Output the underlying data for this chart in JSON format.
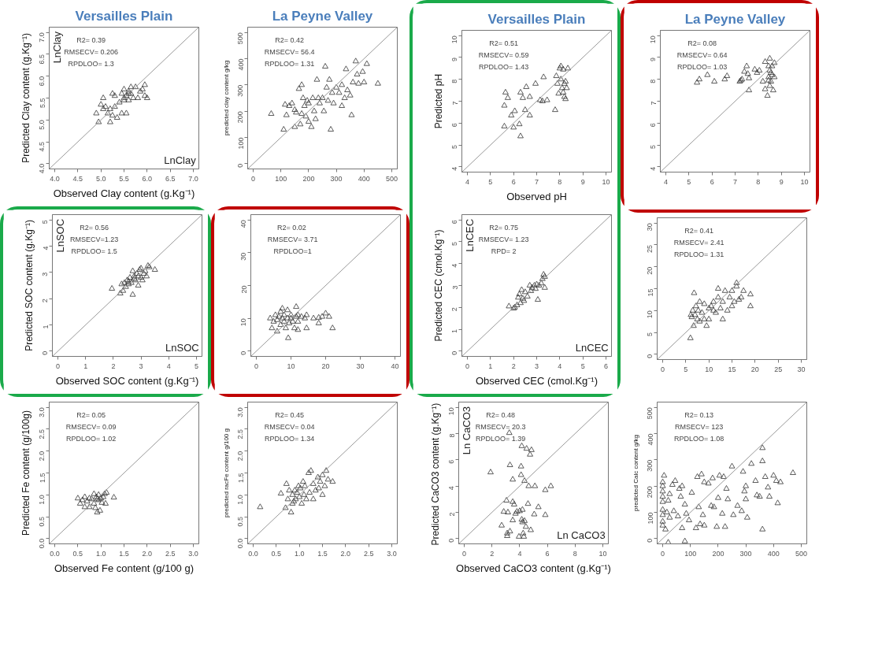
{
  "chart_data": [
    {
      "type": "scatter",
      "title": "Versailles Plain",
      "xlabel": "Observed Clay content (g.Kg⁻¹)",
      "ylabel": "Predicted Clay content (g.Kg⁻¹)",
      "xlim": [
        3.88,
        7.12
      ],
      "ylim": [
        3.88,
        7.12
      ],
      "xticks": [
        {
          "value": 4,
          "label": "4.0"
        },
        {
          "value": 4.5,
          "label": "4.5"
        },
        {
          "value": 5,
          "label": "5.0"
        },
        {
          "value": 5.5,
          "label": "5.5"
        },
        {
          "value": 6,
          "label": "6.0"
        },
        {
          "value": 6.5,
          "label": "6.5"
        },
        {
          "value": 7,
          "label": "7.0"
        }
      ],
      "yticks": [
        {
          "value": 4,
          "label": "4.0"
        },
        {
          "value": 4.5,
          "label": "4.5"
        },
        {
          "value": 5,
          "label": "5.0"
        },
        {
          "value": 5.5,
          "label": "5.5"
        },
        {
          "value": 6,
          "label": "6.0"
        },
        {
          "value": 6.5,
          "label": "6.5"
        },
        {
          "value": 7,
          "label": "7.0"
        }
      ],
      "grid": false,
      "marker": "triangle",
      "annotations": [
        "R2= 0.39",
        "RMSECV= 0.206",
        "RPDLOO= 1.3",
        "LnClay",
        "LnClay"
      ],
      "series": [
        {
          "color": "#333333",
          "x": [
            4.9,
            4.95,
            5.0,
            5.05,
            5.05,
            5.1,
            5.15,
            5.2,
            5.2,
            5.25,
            5.25,
            5.3,
            5.3,
            5.35,
            5.4,
            5.45,
            5.45,
            5.5,
            5.5,
            5.55,
            5.55,
            5.6,
            5.6,
            5.65,
            5.65,
            5.7,
            5.75,
            5.8,
            5.85,
            5.9,
            5.95,
            5.95,
            6.0,
            5.6,
            5.5
          ],
          "values": [
            5.15,
            4.95,
            5.35,
            5.5,
            5.25,
            5.3,
            5.15,
            4.95,
            5.25,
            5.6,
            5.1,
            5.55,
            5.3,
            5.05,
            5.4,
            5.15,
            5.6,
            5.5,
            5.7,
            5.55,
            5.15,
            5.6,
            5.45,
            5.75,
            5.6,
            5.5,
            5.75,
            5.5,
            5.65,
            5.7,
            5.8,
            5.55,
            5.5,
            5.65,
            5.45
          ]
        },
        {
          "type": "line",
          "marker": "none",
          "color": "#999999",
          "x": [
            3.88,
            7.12
          ],
          "values": [
            3.88,
            7.12
          ]
        }
      ]
    },
    {
      "type": "scatter",
      "title": "La Peyne Valley",
      "ylabel": "predicted clay content g/kg",
      "xlim": [
        -20,
        520
      ],
      "ylim": [
        -20,
        520
      ],
      "xticks": [
        0,
        100,
        200,
        300,
        400,
        500
      ],
      "yticks": [
        0,
        100,
        200,
        300,
        400,
        500
      ],
      "grid": false,
      "marker": "triangle",
      "annotations": [
        "R2= 0.42",
        "RMSECV= 56.4",
        "RPDLOO= 1.31"
      ],
      "series": [
        {
          "color": "#333333",
          "x": [
            65,
            110,
            115,
            120,
            130,
            140,
            150,
            150,
            155,
            165,
            170,
            175,
            175,
            180,
            185,
            190,
            195,
            200,
            200,
            210,
            215,
            220,
            225,
            230,
            235,
            240,
            250,
            255,
            260,
            265,
            270,
            275,
            280,
            285,
            290,
            300,
            310,
            320,
            320,
            330,
            335,
            340,
            350,
            355,
            360,
            370,
            375,
            380,
            395,
            400,
            410,
            450
          ],
          "values": [
            190,
            130,
            225,
            185,
            220,
            230,
            140,
            205,
            195,
            285,
            150,
            300,
            190,
            250,
            220,
            180,
            240,
            160,
            230,
            140,
            250,
            200,
            170,
            320,
            250,
            230,
            250,
            200,
            370,
            290,
            240,
            320,
            130,
            270,
            230,
            290,
            270,
            300,
            220,
            250,
            360,
            280,
            260,
            185,
            310,
            390,
            340,
            305,
            350,
            310,
            380,
            305
          ]
        },
        {
          "type": "line",
          "marker": "none",
          "color": "#999999",
          "x": [
            -20,
            520
          ],
          "values": [
            -20,
            520
          ]
        }
      ]
    },
    {
      "type": "scatter",
      "title": "Versailles Plain",
      "xlabel": "Observed pH",
      "ylabel": "Predicted pH",
      "xlim": [
        3.76,
        10.24
      ],
      "ylim": [
        3.76,
        10.24
      ],
      "xticks": [
        4,
        5,
        6,
        7,
        8,
        9,
        10
      ],
      "yticks": [
        4,
        5,
        6,
        7,
        8,
        9,
        10
      ],
      "grid": false,
      "marker": "triangle",
      "annotations": [
        "R2= 0.51",
        "RMSECV= 0.59",
        "RPDLOO= 1.43"
      ],
      "series": [
        {
          "color": "#333333",
          "x": [
            5.6,
            5.6,
            5.65,
            5.75,
            5.9,
            6.0,
            6.05,
            6.25,
            6.3,
            6.3,
            6.4,
            6.5,
            6.55,
            6.7,
            6.7,
            6.95,
            7.15,
            7.25,
            7.3,
            7.45,
            7.8,
            7.85,
            7.9,
            7.95,
            8.0,
            8.05,
            8.1,
            8.15,
            8.2,
            8.2,
            8.25,
            8.3,
            8.35,
            8.05,
            8.15,
            8.25
          ],
          "values": [
            5.85,
            6.8,
            7.4,
            7.15,
            6.35,
            5.8,
            6.55,
            5.95,
            5.4,
            7.4,
            7.15,
            6.6,
            7.65,
            7.2,
            6.35,
            7.8,
            7.05,
            7.0,
            8.1,
            7.05,
            6.6,
            8.15,
            7.8,
            7.35,
            8.5,
            8.0,
            7.6,
            8.45,
            7.8,
            7.2,
            7.9,
            7.6,
            8.5,
            8.6,
            7.4,
            7.1
          ]
        },
        {
          "type": "line",
          "marker": "none",
          "color": "#999999",
          "x": [
            3.76,
            10.24
          ],
          "values": [
            3.76,
            10.24
          ]
        }
      ]
    },
    {
      "type": "scatter",
      "title": "La Peyne Valley",
      "xlim": [
        3.76,
        10.24
      ],
      "ylim": [
        3.76,
        10.24
      ],
      "xticks": [
        4,
        5,
        6,
        7,
        8,
        9,
        10
      ],
      "yticks": [
        4,
        5,
        6,
        7,
        8,
        9,
        10
      ],
      "grid": false,
      "marker": "triangle",
      "annotations": [
        "R2= 0.08",
        "RMSECV= 0.64",
        "RPDLOO= 1.03"
      ],
      "series": [
        {
          "color": "#333333",
          "x": [
            5.35,
            5.45,
            5.8,
            6.1,
            6.55,
            6.65,
            7.2,
            7.25,
            7.3,
            7.4,
            7.5,
            7.55,
            7.6,
            7.6,
            7.85,
            7.95,
            8.05,
            8.2,
            8.3,
            8.3,
            8.4,
            8.45,
            8.45,
            8.5,
            8.5,
            8.5,
            8.55,
            8.6,
            8.6,
            8.65,
            8.7,
            8.7,
            8.55,
            8.45
          ],
          "values": [
            7.85,
            8.0,
            8.2,
            7.9,
            8.0,
            8.15,
            7.9,
            7.95,
            8.0,
            8.35,
            8.6,
            8.25,
            7.5,
            8.05,
            8.45,
            8.3,
            8.4,
            7.9,
            7.55,
            8.8,
            7.25,
            8.6,
            8.1,
            7.7,
            8.4,
            8.95,
            7.9,
            8.6,
            8.2,
            7.5,
            8.75,
            8.1,
            8.3,
            7.95
          ]
        },
        {
          "type": "line",
          "marker": "none",
          "color": "#999999",
          "x": [
            3.76,
            10.24
          ],
          "values": [
            3.76,
            10.24
          ]
        }
      ]
    },
    {
      "type": "scatter",
      "xlabel": "Observed SOC content (g.Kg⁻¹)",
      "ylabel": "Predicted SOC content (g.Kg⁻¹)",
      "xlim": [
        -0.2,
        5.2
      ],
      "ylim": [
        -0.2,
        5.2
      ],
      "xticks": [
        0,
        1,
        2,
        3,
        4,
        5
      ],
      "yticks": [
        0,
        1,
        2,
        3,
        4,
        5
      ],
      "grid": false,
      "marker": "triangle",
      "annotations": [
        "R2= 0.56",
        "RMSECV=1.23",
        "RPDLOO= 1.5",
        "LnSOC",
        "LnSOC"
      ],
      "series": [
        {
          "color": "#333333",
          "x": [
            1.95,
            2.25,
            2.3,
            2.35,
            2.4,
            2.45,
            2.5,
            2.55,
            2.6,
            2.65,
            2.7,
            2.7,
            2.75,
            2.8,
            2.85,
            2.9,
            2.9,
            2.95,
            3.0,
            3.0,
            3.05,
            3.1,
            3.15,
            3.2,
            3.25,
            3.3,
            3.5,
            2.55,
            2.75
          ],
          "values": [
            2.38,
            2.2,
            2.55,
            2.3,
            2.6,
            2.45,
            2.7,
            2.55,
            2.8,
            2.6,
            3.05,
            2.15,
            2.85,
            2.7,
            2.95,
            2.5,
            2.85,
            3.1,
            2.8,
            3.15,
            2.7,
            2.95,
            3.05,
            2.85,
            3.25,
            3.2,
            3.1,
            2.65,
            2.75
          ]
        },
        {
          "type": "line",
          "marker": "none",
          "color": "#999999",
          "x": [
            -0.2,
            5.2
          ],
          "values": [
            -0.2,
            5.2
          ]
        }
      ]
    },
    {
      "type": "scatter",
      "xlim": [
        -1.6,
        41.6
      ],
      "ylim": [
        -1.6,
        41.6
      ],
      "xticks": [
        0,
        10,
        20,
        30,
        40
      ],
      "yticks": [
        0,
        10,
        20,
        30,
        40
      ],
      "grid": false,
      "marker": "triangle",
      "annotations": [
        "R2=  0.02",
        "RMSECV= 3.71",
        "RPDLOO=1"
      ],
      "series": [
        {
          "color": "#333333",
          "x": [
            4,
            4.5,
            5,
            5.5,
            6,
            6,
            6.5,
            7,
            7,
            7.5,
            7.5,
            8,
            8,
            8.5,
            9,
            9,
            9.2,
            9.5,
            10,
            10,
            10.5,
            11,
            11.5,
            11.5,
            12,
            12,
            12,
            13,
            14,
            14.5,
            14.5,
            16.5,
            18,
            18,
            19,
            20,
            21,
            22
          ],
          "values": [
            10,
            7,
            9,
            11,
            6,
            9.5,
            10.5,
            8,
            12,
            13,
            10,
            9,
            11,
            7,
            12.5,
            10,
            4,
            8.5,
            11,
            10,
            9,
            7,
            10.5,
            13.5,
            9,
            11,
            6.5,
            10.5,
            10,
            11,
            7,
            10,
            8.5,
            10.2,
            10.5,
            11.5,
            10.5,
            7
          ]
        },
        {
          "type": "line",
          "marker": "none",
          "color": "#999999",
          "x": [
            -1.6,
            41.6
          ],
          "values": [
            -1.6,
            41.6
          ]
        }
      ]
    },
    {
      "type": "scatter",
      "xlabel": "Observed CEC (cmol.Kg⁻¹)",
      "ylabel": "Predicted CEC (cmol.Kg⁻¹)",
      "xlim": [
        -0.24,
        6.24
      ],
      "ylim": [
        -0.24,
        6.24
      ],
      "xticks": [
        0,
        1,
        2,
        3,
        4,
        5,
        6
      ],
      "yticks": [
        0,
        1,
        2,
        3,
        4,
        5,
        6
      ],
      "grid": false,
      "marker": "triangle",
      "annotations": [
        "R2= 0.75",
        "RMSECV= 1.23",
        "RPD= 2",
        "LnCEC",
        "LnCEC"
      ],
      "series": [
        {
          "color": "#333333",
          "x": [
            1.8,
            2.0,
            2.05,
            2.15,
            2.2,
            2.25,
            2.3,
            2.35,
            2.4,
            2.45,
            2.5,
            2.6,
            2.7,
            2.75,
            2.8,
            2.9,
            2.95,
            3.0,
            3.05,
            3.1,
            3.2,
            3.25,
            3.3,
            3.35,
            3.35
          ],
          "values": [
            2.05,
            1.95,
            2.0,
            2.1,
            2.45,
            2.6,
            2.2,
            2.8,
            2.4,
            2.3,
            2.7,
            2.5,
            3.0,
            2.75,
            2.9,
            3.0,
            2.85,
            3.05,
            2.35,
            3.0,
            3.1,
            3.3,
            3.5,
            2.9,
            3.4
          ]
        },
        {
          "type": "line",
          "marker": "none",
          "color": "#999999",
          "x": [
            -0.24,
            6.24
          ],
          "values": [
            -0.24,
            6.24
          ]
        }
      ]
    },
    {
      "type": "scatter",
      "xlim": [
        -1.2,
        31.2
      ],
      "ylim": [
        -1.2,
        31.2
      ],
      "xticks": [
        0,
        5,
        10,
        15,
        20,
        25,
        30
      ],
      "yticks": [
        0,
        5,
        10,
        15,
        20,
        25,
        30
      ],
      "grid": false,
      "marker": "triangle",
      "annotations": [
        "R2= 0.41",
        "RMSECV= 2.41",
        "RPDLOO= 1.31"
      ],
      "series": [
        {
          "color": "#333333",
          "x": [
            6,
            6.1,
            6.3,
            6.5,
            6.7,
            6.8,
            7,
            7.2,
            7.5,
            7.7,
            8,
            8,
            8.5,
            9,
            9,
            9.5,
            10,
            10,
            10.5,
            11,
            11,
            11.5,
            12,
            12,
            12.5,
            13,
            13,
            13.5,
            14,
            14.5,
            15,
            15,
            15.5,
            16,
            16,
            16.5,
            17,
            17.5,
            19,
            19
          ],
          "values": [
            3.7,
            9,
            8.5,
            10,
            6.5,
            14,
            9,
            11,
            8,
            10,
            12,
            7.5,
            9.5,
            11.5,
            8,
            6.5,
            10.5,
            8,
            11,
            12,
            10,
            9.5,
            15,
            13,
            10.5,
            8,
            12,
            14.5,
            10,
            13,
            14.5,
            11,
            12,
            16.3,
            15.5,
            12.5,
            13,
            14.5,
            13.7,
            11
          ]
        },
        {
          "type": "line",
          "marker": "none",
          "color": "#999999",
          "x": [
            -1.2,
            31.2
          ],
          "values": [
            -1.2,
            31.2
          ]
        }
      ]
    },
    {
      "type": "scatter",
      "xlabel": "Observed Fe content (g/100 g)",
      "ylabel": "Predicted Fe content (g/100g)",
      "xlim": [
        -0.12,
        3.12
      ],
      "ylim": [
        -0.12,
        3.12
      ],
      "xticks": [
        {
          "value": 0,
          "label": "0.0"
        },
        {
          "value": 0.5,
          "label": "0.5"
        },
        {
          "value": 1,
          "label": "1.0"
        },
        {
          "value": 1.5,
          "label": "1.5"
        },
        {
          "value": 2,
          "label": "2.0"
        },
        {
          "value": 2.5,
          "label": "2.5"
        },
        {
          "value": 3,
          "label": "3.0"
        }
      ],
      "yticks": [
        {
          "value": 0,
          "label": "0.0"
        },
        {
          "value": 0.5,
          "label": "0.5"
        },
        {
          "value": 1,
          "label": "1.0"
        },
        {
          "value": 1.5,
          "label": "1.5"
        },
        {
          "value": 2,
          "label": "2.0"
        },
        {
          "value": 2.5,
          "label": "2.5"
        },
        {
          "value": 3,
          "label": "3.0"
        }
      ],
      "grid": false,
      "marker": "triangle",
      "annotations": [
        "R2= 0.05",
        "RMSECV= 0.09",
        "RPDLOO= 1.02"
      ],
      "series": [
        {
          "color": "#333333",
          "x": [
            0.5,
            0.55,
            0.6,
            0.65,
            0.65,
            0.7,
            0.75,
            0.75,
            0.8,
            0.85,
            0.85,
            0.88,
            0.9,
            0.92,
            0.95,
            0.95,
            0.98,
            1.0,
            1.02,
            1.05,
            1.08,
            1.1,
            1.12,
            1.28,
            0.92
          ],
          "values": [
            0.92,
            0.8,
            0.88,
            0.72,
            0.95,
            0.85,
            0.92,
            0.72,
            0.9,
            0.8,
            1.02,
            0.7,
            0.95,
            0.6,
            0.88,
            1.0,
            0.64,
            0.92,
            0.82,
            0.95,
            1.02,
            0.8,
            1.05,
            0.94,
            0.9
          ]
        },
        {
          "type": "line",
          "marker": "none",
          "color": "#999999",
          "x": [
            -0.12,
            3.12
          ],
          "values": [
            -0.12,
            3.12
          ]
        }
      ]
    },
    {
      "type": "scatter",
      "ylabel": "predicted racFe content g/100 g",
      "xlim": [
        -0.12,
        3.12
      ],
      "ylim": [
        -0.12,
        3.12
      ],
      "xticks": [
        {
          "value": 0,
          "label": "0.0"
        },
        {
          "value": 0.5,
          "label": "0.5"
        },
        {
          "value": 1,
          "label": "1.0"
        },
        {
          "value": 1.5,
          "label": "1.5"
        },
        {
          "value": 2,
          "label": "2.0"
        },
        {
          "value": 2.5,
          "label": "2.5"
        },
        {
          "value": 3,
          "label": "3.0"
        }
      ],
      "yticks": [
        {
          "value": 0,
          "label": "0.0"
        },
        {
          "value": 0.5,
          "label": "0.5"
        },
        {
          "value": 1,
          "label": "1.0"
        },
        {
          "value": 1.5,
          "label": "1.5"
        },
        {
          "value": 2,
          "label": "2.0"
        },
        {
          "value": 2.5,
          "label": "2.5"
        },
        {
          "value": 3,
          "label": "3.0"
        }
      ],
      "grid": false,
      "marker": "triangle",
      "annotations": [
        "R2= 0.45",
        "RMSECV= 0.04",
        "RPDLOO= 1.34"
      ],
      "series": [
        {
          "color": "#333333",
          "x": [
            0.15,
            0.6,
            0.7,
            0.72,
            0.75,
            0.78,
            0.82,
            0.85,
            0.85,
            0.88,
            0.9,
            0.92,
            0.95,
            0.98,
            1.0,
            1.02,
            1.05,
            1.08,
            1.1,
            1.12,
            1.15,
            1.2,
            1.22,
            1.25,
            1.3,
            1.3,
            1.35,
            1.4,
            1.42,
            1.45,
            1.5,
            1.5,
            1.55,
            1.58,
            1.62,
            1.72
          ],
          "values": [
            0.72,
            1.03,
            0.7,
            1.25,
            0.9,
            1.1,
            0.6,
            0.8,
            1.0,
            0.85,
            1.1,
            0.9,
            1.05,
            1.2,
            0.95,
            1.15,
            0.8,
            1.3,
            1.0,
            1.2,
            0.9,
            1.5,
            1.05,
            1.55,
            1.25,
            0.9,
            1.1,
            1.4,
            1.15,
            1.3,
            1.45,
            1.0,
            1.2,
            1.55,
            1.35,
            1.3
          ]
        },
        {
          "type": "line",
          "marker": "none",
          "color": "#999999",
          "x": [
            -0.12,
            3.12
          ],
          "values": [
            -0.12,
            3.12
          ]
        }
      ]
    },
    {
      "type": "scatter",
      "xlabel": "Observed CaCO3 content (g.Kg⁻¹)",
      "ylabel": "Predicted  CaCO3 content (g.Kg⁻¹)",
      "xlim": [
        -0.4,
        10.4
      ],
      "ylim": [
        -0.4,
        10.4
      ],
      "xticks": [
        0,
        2,
        4,
        6,
        8,
        10
      ],
      "yticks": [
        0,
        2,
        4,
        6,
        8,
        10
      ],
      "grid": false,
      "marker": "triangle",
      "annotations": [
        "R2= 0.48",
        "RMSECV= 20.3",
        "RPDLOO= 1.39",
        "Ln CaCO3",
        "Ln CaCO3"
      ],
      "series": [
        {
          "color": "#333333",
          "x": [
            1.9,
            2.7,
            2.85,
            3.05,
            3.1,
            3.1,
            3.15,
            3.25,
            3.3,
            3.3,
            3.5,
            3.5,
            3.5,
            3.6,
            3.7,
            3.8,
            3.95,
            4.0,
            4.1,
            4.1,
            4.15,
            4.15,
            4.2,
            4.2,
            4.25,
            4.3,
            4.35,
            4.35,
            4.45,
            4.5,
            4.6,
            4.65,
            4.75,
            4.8,
            4.85,
            5.05,
            5.1,
            5.35,
            5.85,
            5.85,
            6.25
          ],
          "values": [
            5.05,
            1.0,
            2.05,
            2.9,
            0.4,
            0.2,
            2.0,
            8.05,
            5.6,
            0.55,
            1.4,
            2.8,
            4.5,
            2.6,
            1.9,
            2.05,
            0.15,
            2.1,
            5.5,
            4.85,
            7.05,
            1.45,
            1.25,
            2.2,
            0.4,
            0.15,
            1.35,
            4.4,
            0.9,
            6.85,
            2.65,
            4.0,
            6.4,
            0.65,
            6.75,
            1.85,
            4.0,
            2.4,
            1.8,
            3.7,
            4.0
          ]
        },
        {
          "type": "line",
          "marker": "none",
          "color": "#999999",
          "x": [
            -0.4,
            10.4
          ],
          "values": [
            -0.4,
            10.4
          ]
        }
      ]
    },
    {
      "type": "scatter",
      "ylabel": "predicted Calc content g/kg",
      "xlim": [
        -20,
        520
      ],
      "ylim": [
        -20,
        520
      ],
      "xticks": [
        0,
        100,
        200,
        300,
        400,
        500
      ],
      "yticks": [
        0,
        100,
        200,
        300,
        400,
        500
      ],
      "grid": false,
      "marker": "triangle",
      "annotations": [
        "R2= 0.13",
        "RMSECV= 123",
        "RPDLOO= 1.08"
      ],
      "series": [
        {
          "color": "#333333",
          "x": [
            0,
            0,
            0,
            0,
            0,
            0,
            0,
            0,
            0,
            5,
            10,
            15,
            20,
            20,
            25,
            25,
            35,
            40,
            45,
            55,
            60,
            65,
            70,
            70,
            80,
            80,
            85,
            95,
            105,
            120,
            125,
            130,
            135,
            140,
            145,
            150,
            150,
            165,
            175,
            180,
            185,
            195,
            200,
            205,
            215,
            220,
            225,
            230,
            235,
            250,
            255,
            270,
            285,
            290,
            295,
            300,
            300,
            305,
            320,
            335,
            340,
            350,
            360,
            360,
            360,
            370,
            380,
            385,
            400,
            410,
            415,
            425,
            470
          ],
          "values": [
            215,
            200,
            160,
            140,
            110,
            90,
            65,
            50,
            180,
            240,
            35,
            100,
            145,
            -15,
            170,
            80,
            205,
            105,
            220,
            85,
            190,
            160,
            40,
            200,
            130,
            -10,
            95,
            70,
            175,
            40,
            235,
            120,
            55,
            245,
            90,
            50,
            215,
            210,
            125,
            230,
            120,
            45,
            155,
            240,
            95,
            235,
            45,
            190,
            150,
            275,
            90,
            125,
            105,
            255,
            180,
            200,
            150,
            80,
            285,
            220,
            165,
            160,
            345,
            295,
            35,
            235,
            195,
            160,
            240,
            220,
            135,
            215,
            250
          ]
        },
        {
          "type": "line",
          "marker": "none",
          "color": "#999999",
          "x": [
            -20,
            520
          ],
          "values": [
            -20,
            520
          ]
        }
      ]
    }
  ]
}
